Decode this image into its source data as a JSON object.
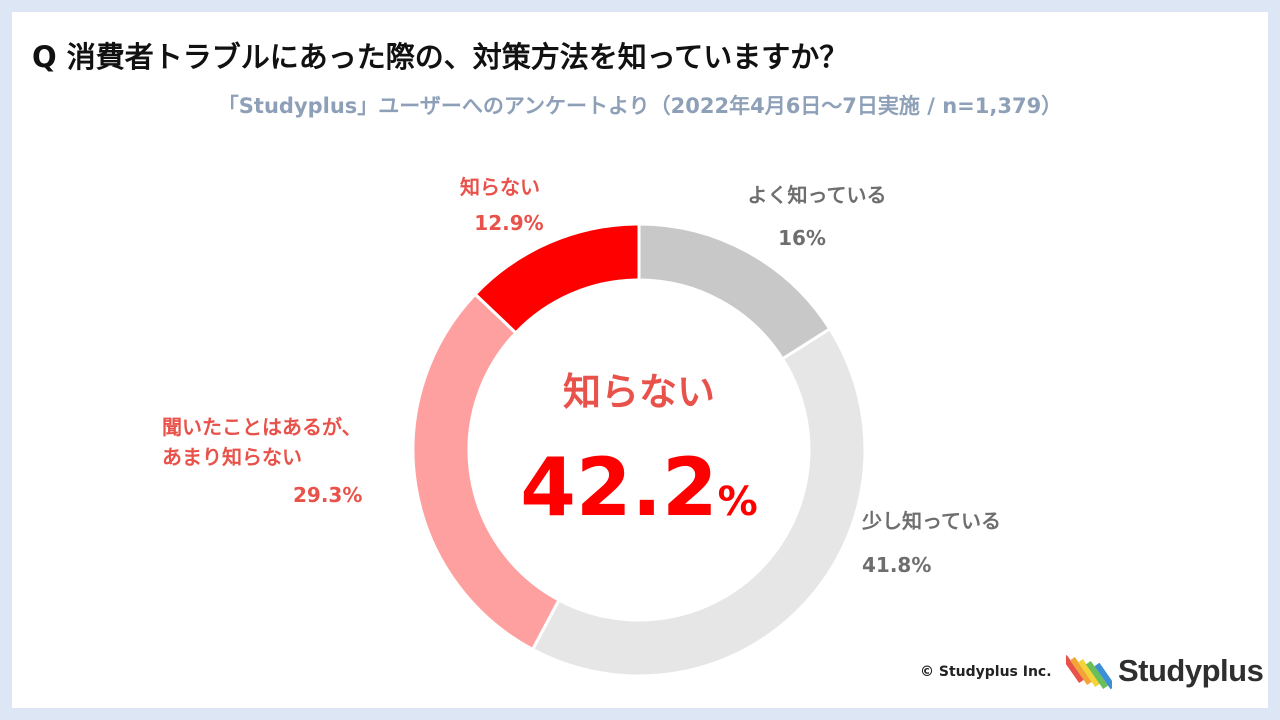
{
  "title": "Q 消費者トラブルにあった際の、対策方法を知っていますか？",
  "subtitle": "「Studyplus」ユーザーへのアンケートより（2022年4月6日～7日実施 / n=1,379）",
  "center": {
    "label": "知らない",
    "value_number": "42.2",
    "value_unit": "%"
  },
  "colors": {
    "well_known": "#c8c8c8",
    "somewhat": "#e6e6e6",
    "heard_not_much": "#ffa0a0",
    "unknown": "#ff0000",
    "red_text": "#e8524a",
    "gray_text": "#6e6e6e"
  },
  "chart_data": {
    "type": "pie",
    "donut": true,
    "slices": [
      {
        "label": "よく知っている",
        "value": 16,
        "display": "16%"
      },
      {
        "label": "少し知っている",
        "value": 41.8,
        "display": "41.8%"
      },
      {
        "label": [
          "聞いたことはあるが、",
          "あまり知らない"
        ],
        "value": 29.3,
        "display": "29.3%"
      },
      {
        "label": "知らない",
        "value": 12.9,
        "display": "12.9%"
      }
    ]
  },
  "footer": {
    "copyright": "© Studyplus Inc.",
    "brand": "Studyplus",
    "brand_logo": "studyplus-pencils-logo"
  }
}
